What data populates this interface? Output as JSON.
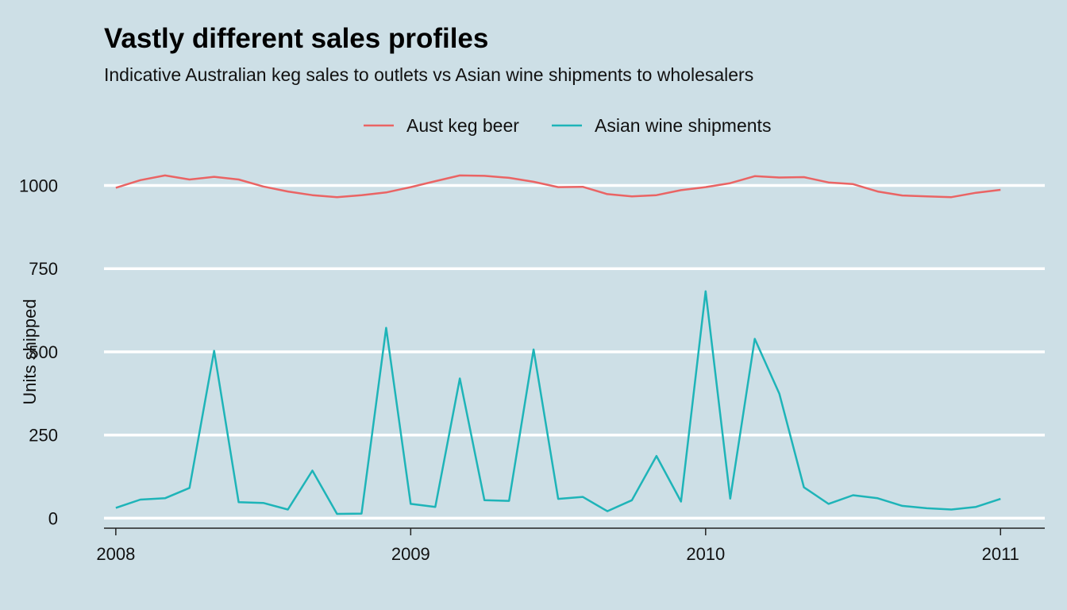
{
  "chart_data": {
    "type": "line",
    "title": "Vastly different sales profiles",
    "subtitle": "Indicative Australian keg sales to outlets vs Asian wine shipments to wholesalers",
    "xlabel": "",
    "ylabel": "Units shipped",
    "xlim": [
      2007.96,
      2011.15
    ],
    "ylim": [
      -30,
      1080
    ],
    "x_ticks": [
      2008,
      2009,
      2010,
      2011
    ],
    "x_tick_labels": [
      "2008",
      "2009",
      "2010",
      "2011"
    ],
    "y_ticks": [
      0,
      250,
      500,
      750,
      1000
    ],
    "y_tick_labels": [
      "0",
      "250",
      "500",
      "750",
      "1000"
    ],
    "grid": "horizontal",
    "legend_position": "top",
    "x_start": "2008-01",
    "x_step": "1 month",
    "series": [
      {
        "name": "Aust keg beer",
        "color": "#ea6464",
        "values": [
          993,
          1016,
          1030,
          1018,
          1026,
          1018,
          997,
          982,
          971,
          965,
          971,
          979,
          995,
          1013,
          1030,
          1029,
          1023,
          1011,
          995,
          996,
          974,
          967,
          971,
          986,
          995,
          1007,
          1028,
          1024,
          1025,
          1009,
          1004,
          982,
          970,
          967,
          965,
          978,
          987
        ]
      },
      {
        "name": "Asian wine shipments",
        "color": "#1eb4b8",
        "values": [
          31,
          56,
          60,
          91,
          503,
          48,
          46,
          26,
          143,
          13,
          14,
          572,
          43,
          34,
          420,
          54,
          52,
          507,
          58,
          64,
          21,
          54,
          187,
          50,
          682,
          59,
          539,
          374,
          93,
          43,
          69,
          60,
          37,
          30,
          26,
          34,
          58
        ]
      }
    ]
  }
}
